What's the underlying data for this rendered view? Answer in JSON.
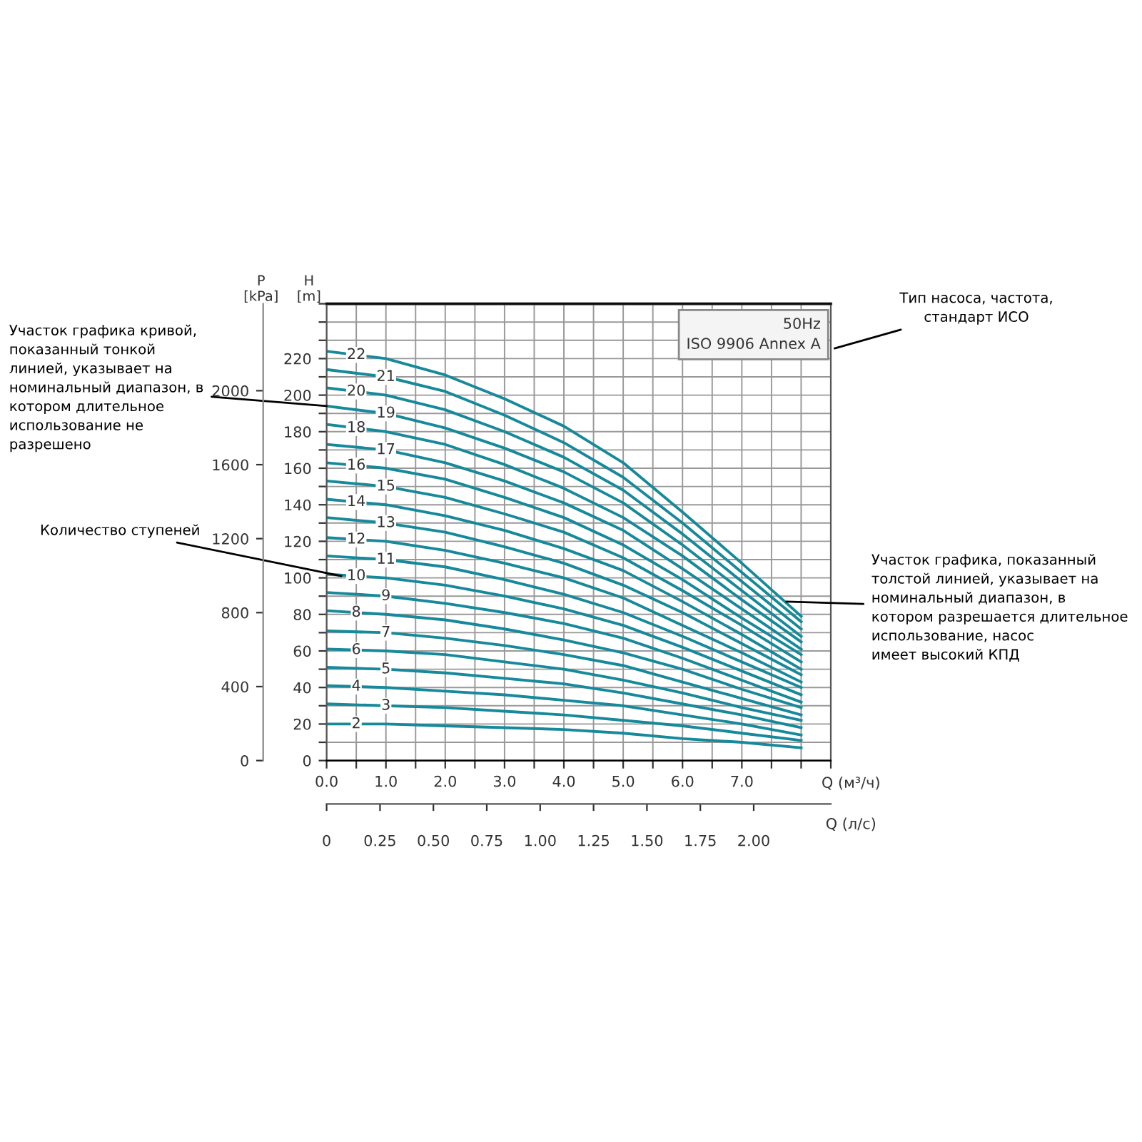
{
  "chart_data": {
    "type": "line",
    "x": [
      0,
      1,
      2,
      3,
      4,
      5,
      6,
      7,
      8
    ],
    "series": [
      {
        "name": "2",
        "color": "#16899a",
        "values": [
          20,
          20,
          19,
          18,
          17,
          15,
          12,
          10,
          7
        ]
      },
      {
        "name": "3",
        "color": "#16899a",
        "values": [
          31,
          30,
          29,
          27,
          25,
          22,
          19,
          15,
          11
        ]
      },
      {
        "name": "4",
        "color": "#16899a",
        "values": [
          41,
          40,
          38,
          36,
          33,
          30,
          25,
          20,
          14
        ]
      },
      {
        "name": "5",
        "color": "#16899a",
        "values": [
          51,
          50,
          48,
          45,
          42,
          37,
          31,
          25,
          18
        ]
      },
      {
        "name": "6",
        "color": "#16899a",
        "values": [
          61,
          60,
          58,
          54,
          50,
          44,
          37,
          29,
          22
        ]
      },
      {
        "name": "7",
        "color": "#16899a",
        "values": [
          71,
          70,
          67,
          63,
          58,
          52,
          43,
          34,
          25
        ]
      },
      {
        "name": "8",
        "color": "#16899a",
        "values": [
          82,
          80,
          77,
          72,
          66,
          59,
          50,
          39,
          29
        ]
      },
      {
        "name": "9",
        "color": "#16899a",
        "values": [
          92,
          90,
          86,
          81,
          75,
          67,
          56,
          44,
          32
        ]
      },
      {
        "name": "10",
        "color": "#16899a",
        "values": [
          102,
          100,
          96,
          90,
          83,
          74,
          62,
          49,
          36
        ]
      },
      {
        "name": "11",
        "color": "#16899a",
        "values": [
          112,
          110,
          106,
          99,
          91,
          81,
          68,
          54,
          40
        ]
      },
      {
        "name": "12",
        "color": "#16899a",
        "values": [
          122,
          120,
          115,
          108,
          100,
          89,
          74,
          59,
          43
        ]
      },
      {
        "name": "13",
        "color": "#16899a",
        "values": [
          133,
          130,
          125,
          117,
          108,
          96,
          81,
          64,
          47
        ]
      },
      {
        "name": "14",
        "color": "#16899a",
        "values": [
          143,
          140,
          134,
          126,
          116,
          104,
          87,
          69,
          50
        ]
      },
      {
        "name": "15",
        "color": "#16899a",
        "values": [
          153,
          150,
          144,
          135,
          125,
          111,
          93,
          74,
          54
        ]
      },
      {
        "name": "16",
        "color": "#16899a",
        "values": [
          163,
          160,
          154,
          144,
          133,
          118,
          99,
          78,
          58
        ]
      },
      {
        "name": "17",
        "color": "#16899a",
        "values": [
          173,
          170,
          163,
          153,
          141,
          126,
          105,
          83,
          61
        ]
      },
      {
        "name": "18",
        "color": "#16899a",
        "values": [
          184,
          180,
          173,
          162,
          149,
          133,
          112,
          88,
          65
        ]
      },
      {
        "name": "19",
        "color": "#16899a",
        "values": [
          194,
          190,
          182,
          171,
          158,
          141,
          118,
          93,
          68
        ]
      },
      {
        "name": "20",
        "color": "#16899a",
        "values": [
          204,
          200,
          192,
          180,
          166,
          148,
          124,
          98,
          72
        ]
      },
      {
        "name": "21",
        "color": "#16899a",
        "values": [
          214,
          210,
          202,
          189,
          174,
          155,
          130,
          103,
          76
        ]
      },
      {
        "name": "22",
        "color": "#16899a",
        "values": [
          224,
          220,
          211,
          198,
          183,
          163,
          136,
          108,
          79
        ]
      }
    ],
    "xlabel": "Q (м³/ч)",
    "ylabel": "H\n[m]",
    "y2label": "P\n[kPa]",
    "x2label": "Q (л/с)",
    "xlim": [
      0,
      8.5
    ],
    "xticks": [
      {
        "value": 0,
        "label": "0.0"
      },
      {
        "value": 0.5,
        "label": null
      },
      {
        "value": 1,
        "label": "1.0"
      },
      {
        "value": 1.5,
        "label": null
      },
      {
        "value": 2,
        "label": "2.0"
      },
      {
        "value": 2.5,
        "label": null
      },
      {
        "value": 3,
        "label": "3.0"
      },
      {
        "value": 3.5,
        "label": null
      },
      {
        "value": 4,
        "label": "4.0"
      },
      {
        "value": 4.5,
        "label": null
      },
      {
        "value": 5,
        "label": "5.0"
      },
      {
        "value": 5.5,
        "label": null
      },
      {
        "value": 6,
        "label": "6.0"
      },
      {
        "value": 6.5,
        "label": null
      },
      {
        "value": 7,
        "label": "7.0"
      },
      {
        "value": 7.5,
        "label": null
      },
      {
        "value": 8,
        "label": null
      },
      {
        "value": 8.5,
        "label": null
      }
    ],
    "ylim": [
      0,
      250
    ],
    "yticks": [
      0,
      {
        "value": 10,
        "label": null
      },
      20,
      {
        "value": 30,
        "label": null
      },
      40,
      {
        "value": 50,
        "label": null
      },
      60,
      {
        "value": 70,
        "label": null
      },
      80,
      {
        "value": 90,
        "label": null
      },
      100,
      {
        "value": 110,
        "label": null
      },
      120,
      {
        "value": 130,
        "label": null
      },
      140,
      {
        "value": 150,
        "label": null
      },
      160,
      {
        "value": 170,
        "label": null
      },
      180,
      {
        "value": 190,
        "label": null
      },
      200,
      {
        "value": 210,
        "label": null
      },
      220,
      {
        "value": 230,
        "label": null
      },
      {
        "value": 240,
        "label": null
      },
      {
        "value": 250,
        "label": null
      }
    ],
    "y2lim": [
      0,
      2470
    ],
    "y2ticks": [
      0,
      400,
      800,
      1200,
      1600,
      2000
    ],
    "x2lim": [
      0,
      2.361
    ],
    "x2ticks": [
      0,
      0.25,
      {
        "value": 0.5,
        "label": "0.50"
      },
      0.75,
      {
        "value": 1,
        "label": "1.00"
      },
      1.25,
      {
        "value": 1.5,
        "label": "1.50"
      },
      1.75,
      {
        "value": 2,
        "label": "2.00"
      }
    ],
    "grid": true,
    "marker": "none",
    "line_style": "solid",
    "annotations": [
      "50Hz\nISO 9906 Annex A",
      "Тип насоса, частота,\nстандарт ИСО",
      {
        "text": "Участок графика кривой,\nпоказанный тонкой\nлинией, указывает на\nноминальный диапазон, в\nкотором длительное\nиспользование не\nразрешено",
        "x": 0,
        "y": 194
      },
      {
        "text": "Количество ступеней",
        "x": 0.25,
        "y": 101
      },
      {
        "text": "Участок графика, показанный\nтолстой линией, указывает на\nноминальный диапазон, в\nкотором разрешается длительное\nиспользование, насос\nимеет высокий КПД",
        "x": 7.75,
        "y": 87
      }
    ]
  }
}
